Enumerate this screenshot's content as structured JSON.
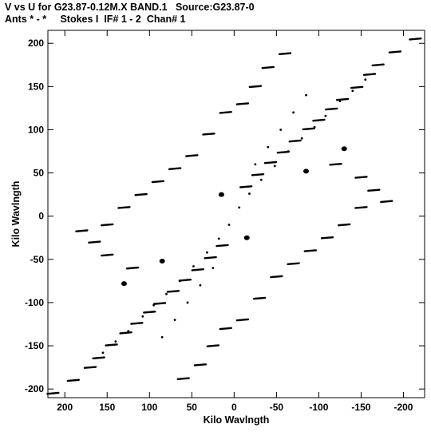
{
  "chart_data": {
    "type": "scatter",
    "title": "V vs U for G23.87-0.12M.X BAND.1   Source:G23.87-0",
    "subtitle": "Ants * - *     Stokes I  IF# 1 - 2  Chan# 1",
    "xlabel": "Kilo Wavlngth",
    "ylabel": "Kilo Wavlngth",
    "xlim": [
      220,
      -225
    ],
    "ylim": [
      -210,
      215
    ],
    "x_ticks": [
      200,
      150,
      100,
      50,
      0,
      -50,
      -100,
      -150,
      -200
    ],
    "x_tick_labels": [
      "200",
      "150",
      "100",
      "50",
      "0",
      "-50",
      "-100",
      "-150",
      "-200"
    ],
    "y_ticks": [
      200,
      150,
      100,
      50,
      0,
      -50,
      -100,
      -150,
      -200
    ],
    "y_tick_labels": [
      "200",
      "150",
      "100",
      "50",
      "0",
      "-50",
      "-100",
      "-150",
      "-200"
    ],
    "grid": false,
    "marker_color": "#000000",
    "tracks": [
      {
        "u": -214,
        "v": 205
      },
      {
        "u": -190,
        "v": 190
      },
      {
        "u": -170,
        "v": 175
      },
      {
        "u": -160,
        "v": 164
      },
      {
        "u": -145,
        "v": 149
      },
      {
        "u": -128,
        "v": 135
      },
      {
        "u": -115,
        "v": 124
      },
      {
        "u": -100,
        "v": 111
      },
      {
        "u": -88,
        "v": 101
      },
      {
        "u": -72,
        "v": 87
      },
      {
        "u": -58,
        "v": 74
      },
      {
        "u": -43,
        "v": 62
      },
      {
        "u": -28,
        "v": 48
      },
      {
        "u": -14,
        "v": 34
      },
      {
        "u": 214,
        "v": -205
      },
      {
        "u": 190,
        "v": -190
      },
      {
        "u": 170,
        "v": -175
      },
      {
        "u": 160,
        "v": -164
      },
      {
        "u": 145,
        "v": -149
      },
      {
        "u": 128,
        "v": -135
      },
      {
        "u": 115,
        "v": -124
      },
      {
        "u": 100,
        "v": -111
      },
      {
        "u": 88,
        "v": -101
      },
      {
        "u": 72,
        "v": -87
      },
      {
        "u": 58,
        "v": -74
      },
      {
        "u": 43,
        "v": -62
      },
      {
        "u": 28,
        "v": -48
      },
      {
        "u": 14,
        "v": -34
      },
      {
        "u": -60,
        "v": 188
      },
      {
        "u": -40,
        "v": 172
      },
      {
        "u": -25,
        "v": 150
      },
      {
        "u": -10,
        "v": 130
      },
      {
        "u": 10,
        "v": 120
      },
      {
        "u": 30,
        "v": 95
      },
      {
        "u": 50,
        "v": 70
      },
      {
        "u": 70,
        "v": 55
      },
      {
        "u": 90,
        "v": 40
      },
      {
        "u": 110,
        "v": 25
      },
      {
        "u": 130,
        "v": 10
      },
      {
        "u": 150,
        "v": -10
      },
      {
        "u": 60,
        "v": -188
      },
      {
        "u": 40,
        "v": -172
      },
      {
        "u": 25,
        "v": -150
      },
      {
        "u": 10,
        "v": -130
      },
      {
        "u": -10,
        "v": -120
      },
      {
        "u": -30,
        "v": -95
      },
      {
        "u": -50,
        "v": -70
      },
      {
        "u": -70,
        "v": -55
      },
      {
        "u": -90,
        "v": -40
      },
      {
        "u": -110,
        "v": -25
      },
      {
        "u": -130,
        "v": -10
      },
      {
        "u": -150,
        "v": 10
      },
      {
        "u": -120,
        "v": 60
      },
      {
        "u": -150,
        "v": 45
      },
      {
        "u": -165,
        "v": 30
      },
      {
        "u": -180,
        "v": 17
      },
      {
        "u": 120,
        "v": -60
      },
      {
        "u": 150,
        "v": -45
      },
      {
        "u": 165,
        "v": -30
      },
      {
        "u": 180,
        "v": -17
      }
    ],
    "dots": [
      {
        "u": -155,
        "v": 158
      },
      {
        "u": -140,
        "v": 145
      },
      {
        "u": -125,
        "v": 133
      },
      {
        "u": -108,
        "v": 116
      },
      {
        "u": -95,
        "v": 103
      },
      {
        "u": -80,
        "v": 90
      },
      {
        "u": -64,
        "v": 75
      },
      {
        "u": -48,
        "v": 58
      },
      {
        "u": -32,
        "v": 42
      },
      {
        "u": -18,
        "v": 26
      },
      {
        "u": -6,
        "v": 10
      },
      {
        "u": 155,
        "v": -158
      },
      {
        "u": 140,
        "v": -145
      },
      {
        "u": 125,
        "v": -133
      },
      {
        "u": 108,
        "v": -116
      },
      {
        "u": 95,
        "v": -103
      },
      {
        "u": 80,
        "v": -90
      },
      {
        "u": 64,
        "v": -75
      },
      {
        "u": 48,
        "v": -58
      },
      {
        "u": 32,
        "v": -42
      },
      {
        "u": 18,
        "v": -26
      },
      {
        "u": 6,
        "v": -10
      },
      {
        "u": -85,
        "v": 140
      },
      {
        "u": -70,
        "v": 120
      },
      {
        "u": -55,
        "v": 100
      },
      {
        "u": -40,
        "v": 80
      },
      {
        "u": -25,
        "v": 60
      },
      {
        "u": 85,
        "v": -140
      },
      {
        "u": 70,
        "v": -120
      },
      {
        "u": 55,
        "v": -100
      },
      {
        "u": 40,
        "v": -80
      },
      {
        "u": 25,
        "v": -60
      }
    ],
    "blobs": [
      {
        "u": 15,
        "v": 25
      },
      {
        "u": -15,
        "v": -25
      },
      {
        "u": -85,
        "v": 52
      },
      {
        "u": 85,
        "v": -52
      },
      {
        "u": -130,
        "v": 78
      },
      {
        "u": 130,
        "v": -78
      }
    ]
  }
}
